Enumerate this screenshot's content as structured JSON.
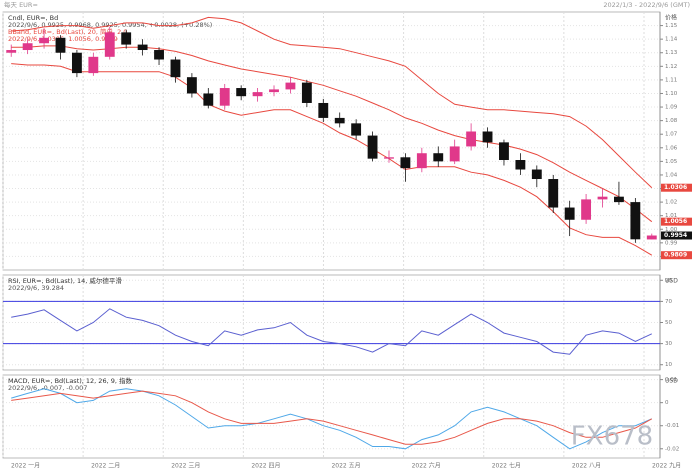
{
  "header": {
    "left": "每天 EUR=",
    "right": "2022/1/3 - 2022/9/6 (GMT)"
  },
  "watermark": "FX678",
  "x_axis": {
    "labels": [
      "2022 一月",
      "2022 二月",
      "2022 三月",
      "2022 四月",
      "2022 五月",
      "2022 六月",
      "2022 七月",
      "2022 八月",
      "2022 九月"
    ]
  },
  "chart_data": [
    {
      "type": "candlestick",
      "title": "Cndl, EUR=, Bd",
      "subtitle": "2022/9/6, 0.9925, 0.9968, 0.9925, 0.9954, +0.0028, (+0.28%)",
      "overlay_title": "BBand, EUR=, Bd(Last), 20, 简单, 2.0",
      "overlay_subtitle": "2022/9/6, 1.0306, 1.0056, 0.9809",
      "y_label": "价格",
      "up_color": "#e0388a",
      "down_color": "#111111",
      "open": [
        1.13,
        1.132,
        1.137,
        1.141,
        1.13,
        1.115,
        1.127,
        1.145,
        1.136,
        1.132,
        1.125,
        1.112,
        1.1,
        1.091,
        1.104,
        1.098,
        1.101,
        1.103,
        1.108,
        1.093,
        1.082,
        1.078,
        1.069,
        1.052,
        1.053,
        1.045,
        1.056,
        1.05,
        1.061,
        1.072,
        1.064,
        1.051,
        1.044,
        1.037,
        1.016,
        1.007,
        1.022,
        1.024,
        1.02,
        0.9925
      ],
      "high": [
        1.136,
        1.14,
        1.148,
        1.143,
        1.132,
        1.13,
        1.149,
        1.147,
        1.14,
        1.134,
        1.127,
        1.115,
        1.104,
        1.107,
        1.106,
        1.104,
        1.106,
        1.112,
        1.11,
        1.096,
        1.086,
        1.081,
        1.072,
        1.058,
        1.056,
        1.06,
        1.061,
        1.066,
        1.078,
        1.075,
        1.066,
        1.056,
        1.047,
        1.04,
        1.021,
        1.026,
        1.03,
        1.035,
        1.023,
        0.9968
      ],
      "low": [
        1.127,
        1.129,
        1.133,
        1.125,
        1.112,
        1.113,
        1.125,
        1.133,
        1.128,
        1.121,
        1.108,
        1.097,
        1.089,
        1.088,
        1.095,
        1.094,
        1.098,
        1.1,
        1.09,
        1.079,
        1.075,
        1.066,
        1.05,
        1.049,
        1.035,
        1.042,
        1.046,
        1.048,
        1.058,
        1.06,
        1.047,
        1.04,
        1.031,
        1.012,
        0.995,
        1.004,
        1.016,
        1.018,
        0.99,
        0.9925
      ],
      "close": [
        1.132,
        1.137,
        1.141,
        1.13,
        1.115,
        1.127,
        1.145,
        1.136,
        1.132,
        1.125,
        1.112,
        1.1,
        1.091,
        1.104,
        1.098,
        1.101,
        1.103,
        1.108,
        1.093,
        1.082,
        1.078,
        1.069,
        1.052,
        1.053,
        1.045,
        1.056,
        1.05,
        1.061,
        1.072,
        1.064,
        1.051,
        1.044,
        1.037,
        1.016,
        1.007,
        1.022,
        1.024,
        1.02,
        0.9926,
        0.9954
      ],
      "overlays": [
        {
          "color": "#e8483f",
          "values": [
            1.146,
            1.147,
            1.149,
            1.15,
            1.15,
            1.148,
            1.15,
            1.152,
            1.152,
            1.15,
            1.15,
            1.152,
            1.156,
            1.155,
            1.152,
            1.146,
            1.14,
            1.136,
            1.135,
            1.134,
            1.133,
            1.13,
            1.127,
            1.124,
            1.12,
            1.11,
            1.1,
            1.092,
            1.09,
            1.088,
            1.088,
            1.087,
            1.086,
            1.085,
            1.083,
            1.076,
            1.066,
            1.054,
            1.042,
            1.0306
          ]
        },
        {
          "color": "#e8483f",
          "values": [
            1.134,
            1.134,
            1.135,
            1.135,
            1.133,
            1.132,
            1.133,
            1.134,
            1.134,
            1.133,
            1.131,
            1.128,
            1.124,
            1.121,
            1.118,
            1.116,
            1.114,
            1.112,
            1.109,
            1.106,
            1.102,
            1.098,
            1.093,
            1.088,
            1.082,
            1.078,
            1.073,
            1.069,
            1.066,
            1.064,
            1.062,
            1.059,
            1.055,
            1.049,
            1.042,
            1.036,
            1.03,
            1.024,
            1.015,
            1.0056
          ]
        },
        {
          "color": "#e8483f",
          "values": [
            1.122,
            1.121,
            1.121,
            1.12,
            1.116,
            1.116,
            1.116,
            1.116,
            1.116,
            1.116,
            1.112,
            1.104,
            1.092,
            1.087,
            1.084,
            1.086,
            1.088,
            1.088,
            1.083,
            1.078,
            1.071,
            1.066,
            1.059,
            1.052,
            1.044,
            1.046,
            1.046,
            1.046,
            1.042,
            1.04,
            1.036,
            1.031,
            1.024,
            1.013,
            1.001,
            0.996,
            0.994,
            0.994,
            0.988,
            0.9809
          ]
        }
      ],
      "markers": [
        {
          "value": 1.0306,
          "color": "#e8483f"
        },
        {
          "value": 1.0056,
          "color": "#e8483f"
        },
        {
          "value": 0.9954,
          "color": "#111111"
        },
        {
          "value": 0.9809,
          "color": "#e8483f"
        }
      ],
      "ylim": [
        0.97,
        1.16
      ],
      "yticks": [
        0.98,
        0.99,
        {
          "value": 1,
          "label": "1.00"
        },
        1.01,
        1.02,
        1.03,
        1.04,
        1.05,
        1.06,
        1.07,
        1.08,
        1.09,
        {
          "value": 1.1,
          "label": "1.10"
        },
        1.11,
        1.12,
        1.13,
        1.14,
        1.15
      ],
      "grid": true
    },
    {
      "type": "line",
      "title": "RSI, EUR=, Bd(Last), 14, 威尔德平滑",
      "subtitle": "2022/9/6, 39.284",
      "y_label": "USD",
      "series": [
        {
          "color": "#5a5fd0",
          "values": [
            55,
            58,
            62,
            52,
            42,
            50,
            63,
            55,
            52,
            47,
            38,
            32,
            28,
            42,
            38,
            43,
            45,
            50,
            38,
            32,
            30,
            27,
            22,
            30,
            28,
            42,
            38,
            48,
            58,
            50,
            40,
            36,
            32,
            22,
            20,
            38,
            42,
            40,
            32,
            39.284
          ]
        }
      ],
      "levels": [
        {
          "value": 70,
          "color": "#3a3ae0"
        },
        {
          "value": 30,
          "color": "#3a3ae0"
        }
      ],
      "ylim": [
        5,
        95
      ],
      "yticks": [
        10,
        30,
        50,
        70,
        90
      ],
      "grid": true
    },
    {
      "type": "line",
      "title": "MACD, EUR=, Bd(Last), 12, 26, 9, 指数",
      "subtitle": "2022/9/6, -0.007, -0.007",
      "y_label": "USD",
      "series": [
        {
          "color": "#4fa8e8",
          "values": [
            0.002,
            0.004,
            0.006,
            0.004,
            0.0,
            0.001,
            0.005,
            0.006,
            0.005,
            0.003,
            -0.001,
            -0.006,
            -0.011,
            -0.01,
            -0.01,
            -0.009,
            -0.007,
            -0.005,
            -0.007,
            -0.01,
            -0.012,
            -0.015,
            -0.019,
            -0.019,
            -0.02,
            -0.016,
            -0.014,
            -0.01,
            -0.004,
            -0.002,
            -0.004,
            -0.007,
            -0.01,
            -0.015,
            -0.02,
            -0.017,
            -0.013,
            -0.01,
            -0.01,
            -0.007
          ]
        },
        {
          "color": "#e8584a",
          "values": [
            0.001,
            0.002,
            0.003,
            0.004,
            0.003,
            0.002,
            0.003,
            0.004,
            0.005,
            0.004,
            0.003,
            0.0,
            -0.004,
            -0.007,
            -0.009,
            -0.009,
            -0.009,
            -0.008,
            -0.007,
            -0.008,
            -0.01,
            -0.012,
            -0.014,
            -0.016,
            -0.018,
            -0.018,
            -0.017,
            -0.015,
            -0.012,
            -0.009,
            -0.007,
            -0.007,
            -0.008,
            -0.01,
            -0.013,
            -0.015,
            -0.015,
            -0.013,
            -0.011,
            -0.007
          ]
        }
      ],
      "ylim": [
        -0.024,
        0.012
      ],
      "yticks": [
        -0.02,
        -0.01,
        0,
        0.01
      ],
      "grid": true
    }
  ]
}
